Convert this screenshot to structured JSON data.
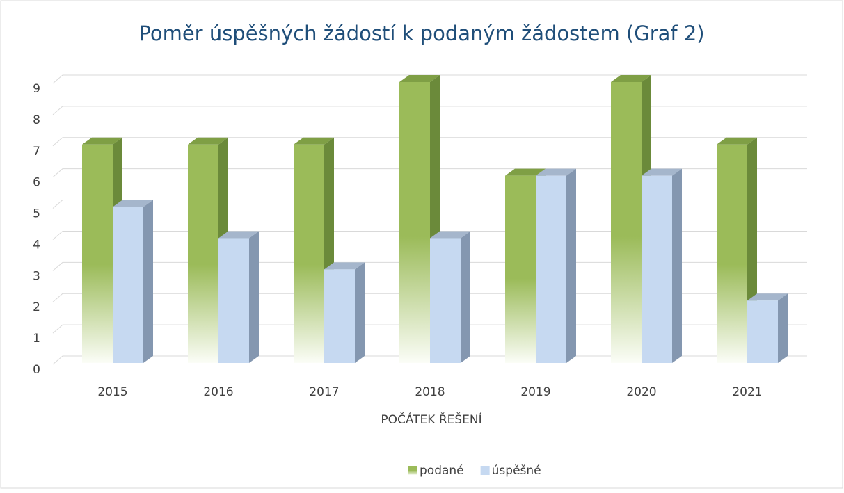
{
  "chart_data": {
    "type": "bar3d",
    "title": "Poměr úspěšných žádostí k podaným žádostem (Graf 2)",
    "x_label": "POČÁTEK ŘEŠENÍ",
    "categories": [
      "2015",
      "2016",
      "2017",
      "2018",
      "2019",
      "2020",
      "2021"
    ],
    "series": [
      {
        "name": "podané",
        "color": "#9bbb59",
        "values": [
          7,
          7,
          7,
          9,
          6,
          9,
          7
        ]
      },
      {
        "name": "úspěšné",
        "color": "#c6d9f1",
        "values": [
          5,
          4,
          3,
          4,
          6,
          6,
          2
        ]
      }
    ],
    "ylim": [
      0,
      9
    ],
    "yticks": [
      0,
      1,
      2,
      3,
      4,
      5,
      6,
      7,
      8,
      9
    ],
    "grid": true,
    "legend": "bottom"
  }
}
